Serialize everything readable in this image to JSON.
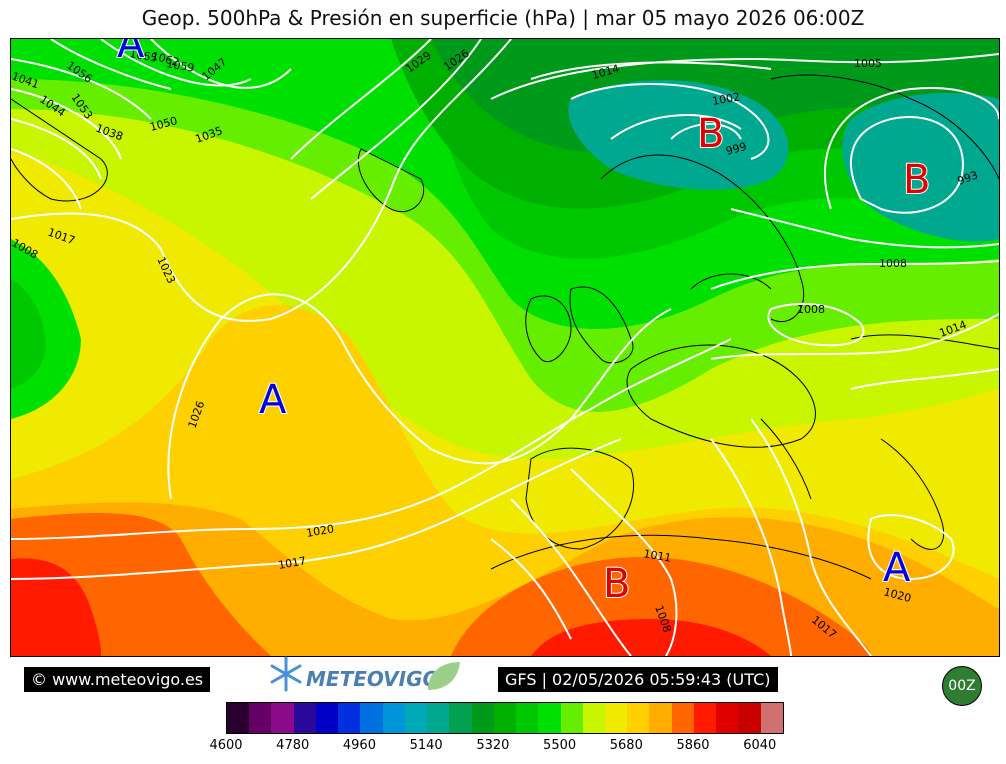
{
  "title": "Geop. 500hPa & Presión en superficie (hPa) | mar 05 mayo 2026 06:00Z",
  "copyright": "© www.meteovigo.es",
  "logo_text": "METEOVIGO",
  "run_info": "GFS | 02/05/2026 05:59:43 (UTC)",
  "cycle": "00Z",
  "colorbar": {
    "colors": [
      "#2a0030",
      "#660066",
      "#8a0a8a",
      "#2b0a9a",
      "#0000c8",
      "#0030e0",
      "#0070e0",
      "#0095d8",
      "#00a8b8",
      "#00a890",
      "#00a050",
      "#009a1a",
      "#00b000",
      "#00c800",
      "#00e000",
      "#66ee00",
      "#c8f500",
      "#f0ea00",
      "#ffd000",
      "#ffae00",
      "#ff6600",
      "#ff1a00",
      "#e00000",
      "#c80000",
      "#d07070"
    ],
    "ticks": [
      "4600",
      "4780",
      "4960",
      "5140",
      "5320",
      "5500",
      "5680",
      "5860",
      "6040"
    ]
  },
  "map": {
    "pressure_centers": [
      {
        "type": "A",
        "label": "A"
      },
      {
        "type": "B",
        "label": "B"
      },
      {
        "type": "B",
        "label": "B"
      },
      {
        "type": "B",
        "label": "B"
      },
      {
        "type": "A",
        "label": "A"
      },
      {
        "type": "A",
        "label": "A"
      }
    ],
    "isobar_labels": [
      "1065",
      "1062",
      "1059",
      "1056",
      "1053",
      "1050",
      "1047",
      "1044",
      "1041",
      "1038",
      "1035",
      "1029",
      "1026",
      "1023",
      "1026",
      "1020",
      "1017",
      "1017",
      "1014",
      "1005",
      "1002",
      "999",
      "993",
      "1008",
      "1008",
      "1014",
      "1011",
      "1008",
      "1017",
      "1020",
      "1008",
      "1017"
    ]
  }
}
